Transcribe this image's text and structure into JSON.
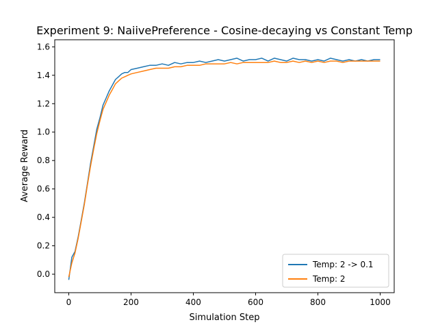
{
  "colors": {
    "series_1": "#1f77b4",
    "series_2": "#ff7f0e",
    "axis": "#000000",
    "background": "#ffffff"
  },
  "chart_data": {
    "type": "line",
    "title": "Experiment 9: NaiivePreference - Cosine-decaying vs Constant Temp",
    "xlabel": "Simulation Step",
    "ylabel": "Average Reward",
    "xlim": [
      -45,
      1045
    ],
    "ylim": [
      -0.13,
      1.65
    ],
    "xticks": [
      0,
      200,
      400,
      600,
      800,
      1000
    ],
    "xtick_labels": [
      "0",
      "200",
      "400",
      "600",
      "800",
      "1000"
    ],
    "yticks": [
      0.0,
      0.2,
      0.4,
      0.6,
      0.8,
      1.0,
      1.2,
      1.4,
      1.6
    ],
    "ytick_labels": [
      "0.0",
      "0.2",
      "0.4",
      "0.6",
      "0.8",
      "1.0",
      "1.2",
      "1.4",
      "1.6"
    ],
    "grid": false,
    "legend_position": "lower right",
    "series": [
      {
        "name": "Temp: 2 -> 0.1",
        "color": "#1f77b4",
        "x": [
          0,
          10,
          20,
          30,
          40,
          50,
          60,
          70,
          80,
          90,
          100,
          110,
          120,
          130,
          140,
          150,
          160,
          170,
          180,
          190,
          200,
          220,
          240,
          260,
          280,
          300,
          320,
          340,
          360,
          380,
          400,
          420,
          440,
          460,
          480,
          500,
          520,
          540,
          560,
          580,
          600,
          620,
          640,
          660,
          680,
          700,
          720,
          740,
          760,
          780,
          800,
          820,
          840,
          860,
          880,
          900,
          920,
          940,
          960,
          980,
          1000
        ],
        "y": [
          -0.04,
          0.12,
          0.16,
          0.26,
          0.38,
          0.5,
          0.64,
          0.78,
          0.9,
          1.02,
          1.1,
          1.19,
          1.24,
          1.29,
          1.33,
          1.37,
          1.39,
          1.41,
          1.42,
          1.42,
          1.44,
          1.45,
          1.46,
          1.47,
          1.47,
          1.48,
          1.47,
          1.49,
          1.48,
          1.49,
          1.49,
          1.5,
          1.49,
          1.5,
          1.51,
          1.5,
          1.51,
          1.52,
          1.5,
          1.51,
          1.51,
          1.52,
          1.5,
          1.52,
          1.51,
          1.5,
          1.52,
          1.51,
          1.51,
          1.5,
          1.51,
          1.5,
          1.52,
          1.51,
          1.5,
          1.51,
          1.5,
          1.51,
          1.5,
          1.51,
          1.51
        ]
      },
      {
        "name": "Temp: 2",
        "color": "#ff7f0e",
        "x": [
          0,
          10,
          20,
          30,
          40,
          50,
          60,
          70,
          80,
          90,
          100,
          110,
          120,
          130,
          140,
          150,
          160,
          170,
          180,
          190,
          200,
          220,
          240,
          260,
          280,
          300,
          320,
          340,
          360,
          380,
          400,
          420,
          440,
          460,
          480,
          500,
          520,
          540,
          560,
          580,
          600,
          620,
          640,
          660,
          680,
          700,
          720,
          740,
          760,
          780,
          800,
          820,
          840,
          860,
          880,
          900,
          920,
          940,
          960,
          980,
          1000
        ],
        "y": [
          -0.02,
          0.08,
          0.15,
          0.25,
          0.37,
          0.49,
          0.63,
          0.76,
          0.88,
          0.99,
          1.08,
          1.16,
          1.21,
          1.26,
          1.3,
          1.34,
          1.36,
          1.38,
          1.39,
          1.4,
          1.41,
          1.42,
          1.43,
          1.44,
          1.45,
          1.45,
          1.45,
          1.46,
          1.46,
          1.47,
          1.47,
          1.47,
          1.48,
          1.48,
          1.48,
          1.48,
          1.49,
          1.48,
          1.49,
          1.49,
          1.49,
          1.49,
          1.49,
          1.5,
          1.49,
          1.49,
          1.5,
          1.49,
          1.5,
          1.49,
          1.5,
          1.49,
          1.5,
          1.5,
          1.49,
          1.5,
          1.5,
          1.5,
          1.5,
          1.5,
          1.5
        ]
      }
    ]
  }
}
